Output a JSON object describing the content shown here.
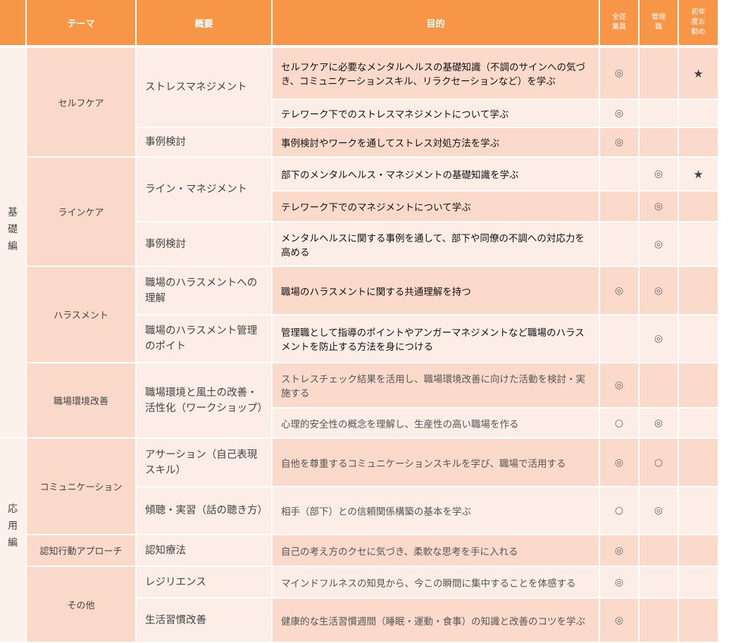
{
  "header": {
    "section": "",
    "theme": "テーマ",
    "overview": "概要",
    "purpose": "目的",
    "all_staff": "全従業員",
    "managers": "管理職",
    "first_year": "初年度お勧め"
  },
  "sections": {
    "basic": "基礎編",
    "applied": "応用編"
  },
  "themes": [
    "セルフケア",
    "ラインケア",
    "ハラスメント",
    "職場環境改善",
    "コミュニケーション",
    "認知行動アプローチ",
    "その他"
  ],
  "overviews": [
    "ストレスマネジメント",
    "事例検討",
    "ライン・マネジメント",
    "事例検討",
    "職場のハラスメントへの理解",
    "職場のハラスメント管理のポイト",
    "職場環境と風土の改善・活性化（ワークショップ）",
    "アサーション（自己表現スキル）",
    "傾聴・実習（話の聴き方）",
    "認知療法",
    "レジリエンス",
    "生活習慣改善"
  ],
  "rows": [
    {
      "purpose": "セルフケアに必要なメンタルヘルスの基礎知識（不調のサインへの気づき、コミュニケーションスキル、リラクセーションなど）を学ぶ",
      "all": "◎",
      "mgr": "",
      "first": "★"
    },
    {
      "purpose": "テレワーク下でのストレスマネジメントについて学ぶ",
      "all": "◎",
      "mgr": "",
      "first": ""
    },
    {
      "purpose": "事例検討やワークを通してストレス対処方法を学ぶ",
      "all": "◎",
      "mgr": "",
      "first": ""
    },
    {
      "purpose": "部下のメンタルヘルス・マネジメントの基礎知識を学ぶ",
      "all": "",
      "mgr": "◎",
      "first": "★"
    },
    {
      "purpose": "テレワーク下でのマネジメントについて学ぶ",
      "all": "",
      "mgr": "◎",
      "first": ""
    },
    {
      "purpose": "メンタルヘルスに関する事例を通して、部下や同僚の不調への対応力を高める",
      "all": "",
      "mgr": "◎",
      "first": ""
    },
    {
      "purpose": "職場のハラスメントに関する共通理解を持つ",
      "all": "◎",
      "mgr": "◎",
      "first": ""
    },
    {
      "purpose": "管理職として指導のポイントやアンガーマネジメントなど職場のハラスメントを防止する方法を身につける",
      "all": "",
      "mgr": "◎",
      "first": ""
    },
    {
      "purpose": "ストレスチェック結果を活用し、職場環境改善に向けた活動を検討・実施する",
      "all": "◎",
      "mgr": "",
      "first": ""
    },
    {
      "purpose": "心理的安全性の概念を理解し、生産性の高い職場を作る",
      "all": "○",
      "mgr": "◎",
      "first": ""
    },
    {
      "purpose": "自他を尊重するコミュニケーションスキルを学び、職場で活用する",
      "all": "◎",
      "mgr": "○",
      "first": ""
    },
    {
      "purpose": "相手（部下）との信頼関係構築の基本を学ぶ",
      "all": "○",
      "mgr": "◎",
      "first": ""
    },
    {
      "purpose": "自己の考え方のクセに気づき、柔軟な思考を手に入れる",
      "all": "◎",
      "mgr": "",
      "first": ""
    },
    {
      "purpose": "マインドフルネスの知見から、今この瞬間に集中することを体感する",
      "all": "◎",
      "mgr": "",
      "first": ""
    },
    {
      "purpose": "健康的な生活習慣週間（睡眠・運動・食事）の知識と改善のコツを学ぶ",
      "all": "◎",
      "mgr": "",
      "first": ""
    }
  ],
  "colors": {
    "header": "#F79646",
    "cell_dark": "#FBDACC",
    "cell_light": "#FCEDE7"
  }
}
